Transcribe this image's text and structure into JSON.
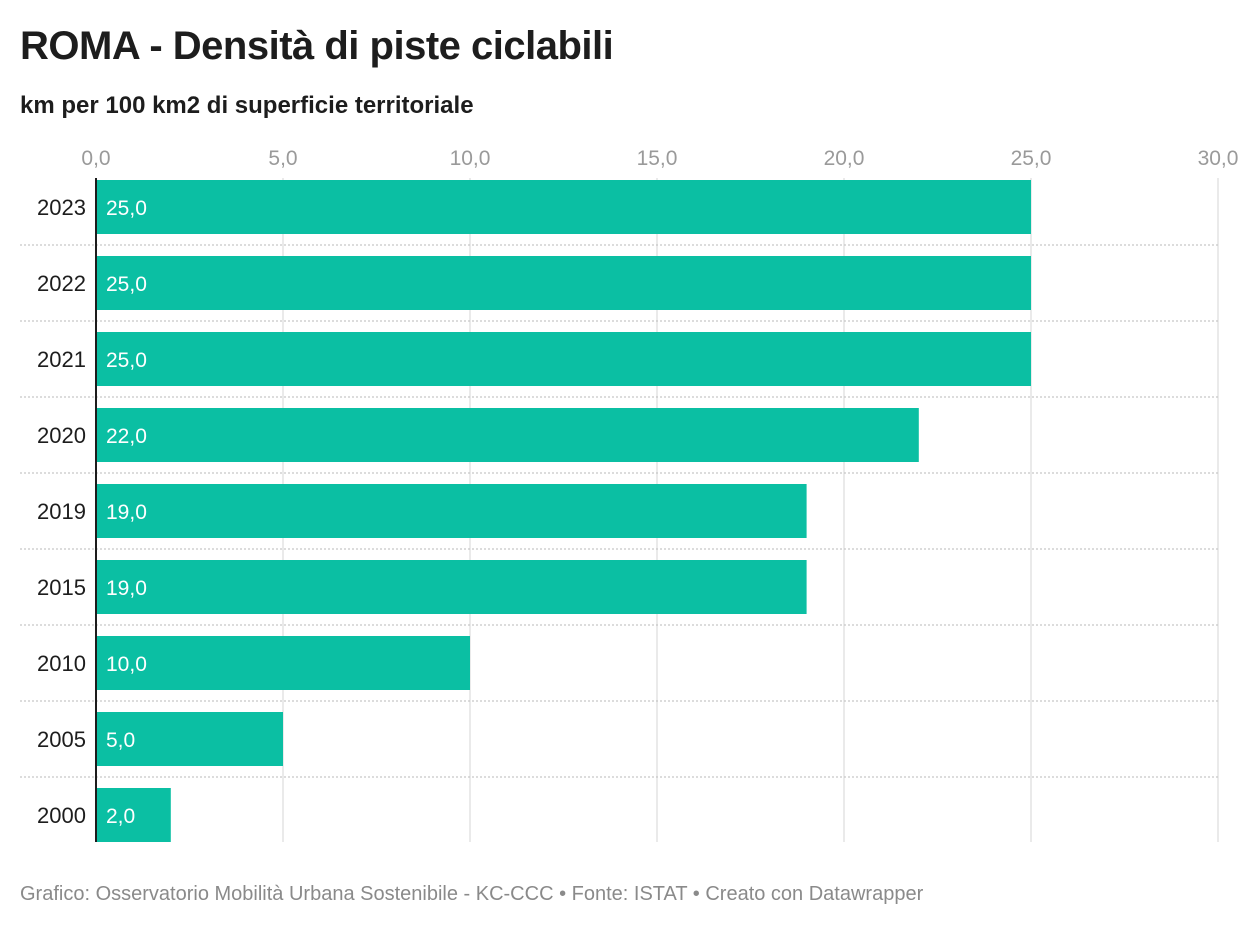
{
  "title": "ROMA - Densità di piste ciclabili",
  "subtitle": "km per 100 km2 di superficie territoriale",
  "footer": {
    "text": "Grafico: Osservatorio Mobilità Urbana Sostenibile - KC-CCC • Fonte: ISTAT • Creato con Datawrapper"
  },
  "chart_data": {
    "type": "bar",
    "orientation": "horizontal",
    "categories": [
      "2023",
      "2022",
      "2021",
      "2020",
      "2019",
      "2015",
      "2010",
      "2005",
      "2000"
    ],
    "values": [
      25.0,
      25.0,
      25.0,
      22.0,
      19.0,
      19.0,
      10.0,
      5.0,
      2.0
    ],
    "value_labels": [
      "25,0",
      "25,0",
      "25,0",
      "22,0",
      "19,0",
      "19,0",
      "10,0",
      "5,0",
      "2,0"
    ],
    "x_ticks": [
      "0,0",
      "5,0",
      "10,0",
      "15,0",
      "20,0",
      "25,0",
      "30,0"
    ],
    "xlim": [
      0,
      30
    ],
    "bar_color": "#0bbfa3",
    "grid": true,
    "tick_position": "top"
  }
}
